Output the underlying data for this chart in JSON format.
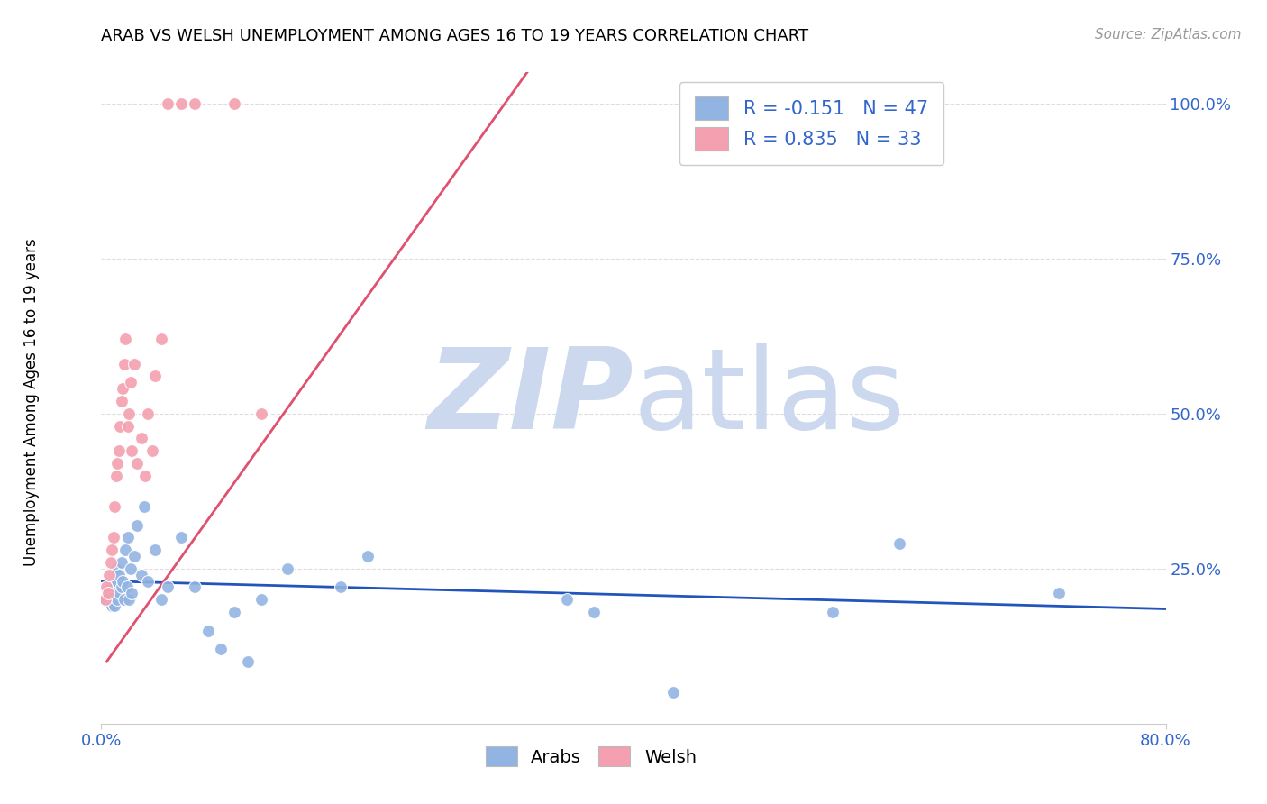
{
  "title": "ARAB VS WELSH UNEMPLOYMENT AMONG AGES 16 TO 19 YEARS CORRELATION CHART",
  "source": "Source: ZipAtlas.com",
  "ylabel": "Unemployment Among Ages 16 to 19 years",
  "xlim": [
    0.0,
    0.8
  ],
  "ylim": [
    0.0,
    1.05
  ],
  "y_ticks": [
    0.0,
    0.25,
    0.5,
    0.75,
    1.0
  ],
  "y_tick_labels": [
    "",
    "25.0%",
    "50.0%",
    "75.0%",
    "100.0%"
  ],
  "arab_color": "#92b4e3",
  "welsh_color": "#f4a0b0",
  "arab_line_color": "#2255bb",
  "welsh_line_color": "#e05070",
  "arab_R": -0.151,
  "arab_N": 47,
  "welsh_R": 0.835,
  "welsh_N": 33,
  "legend_color": "#3366cc",
  "watermark_zip": "ZIP",
  "watermark_atlas": "atlas",
  "watermark_color": "#ccd8ee",
  "arab_x": [
    0.003,
    0.005,
    0.007,
    0.008,
    0.008,
    0.009,
    0.01,
    0.01,
    0.011,
    0.012,
    0.012,
    0.013,
    0.014,
    0.015,
    0.015,
    0.016,
    0.017,
    0.018,
    0.019,
    0.02,
    0.021,
    0.022,
    0.023,
    0.025,
    0.027,
    0.03,
    0.032,
    0.035,
    0.04,
    0.045,
    0.05,
    0.06,
    0.07,
    0.08,
    0.09,
    0.1,
    0.11,
    0.12,
    0.14,
    0.18,
    0.2,
    0.35,
    0.37,
    0.43,
    0.55,
    0.6,
    0.72
  ],
  "arab_y": [
    0.2,
    0.21,
    0.2,
    0.22,
    0.19,
    0.21,
    0.22,
    0.19,
    0.25,
    0.23,
    0.2,
    0.24,
    0.21,
    0.26,
    0.22,
    0.23,
    0.2,
    0.28,
    0.22,
    0.3,
    0.2,
    0.25,
    0.21,
    0.27,
    0.32,
    0.24,
    0.35,
    0.23,
    0.28,
    0.2,
    0.22,
    0.3,
    0.22,
    0.15,
    0.12,
    0.18,
    0.1,
    0.2,
    0.25,
    0.22,
    0.27,
    0.2,
    0.18,
    0.05,
    0.18,
    0.29,
    0.21
  ],
  "welsh_x": [
    0.003,
    0.004,
    0.005,
    0.006,
    0.007,
    0.008,
    0.009,
    0.01,
    0.011,
    0.012,
    0.013,
    0.014,
    0.015,
    0.016,
    0.017,
    0.018,
    0.02,
    0.021,
    0.022,
    0.023,
    0.025,
    0.027,
    0.03,
    0.033,
    0.035,
    0.038,
    0.04,
    0.045,
    0.05,
    0.06,
    0.07,
    0.1,
    0.12
  ],
  "welsh_y": [
    0.2,
    0.22,
    0.21,
    0.24,
    0.26,
    0.28,
    0.3,
    0.35,
    0.4,
    0.42,
    0.44,
    0.48,
    0.52,
    0.54,
    0.58,
    0.62,
    0.48,
    0.5,
    0.55,
    0.44,
    0.58,
    0.42,
    0.46,
    0.4,
    0.5,
    0.44,
    0.56,
    0.62,
    1.0,
    1.0,
    1.0,
    1.0,
    0.5
  ],
  "arab_trend_x": [
    0.0,
    0.8
  ],
  "arab_trend_y": [
    0.23,
    0.185
  ],
  "welsh_trend_x": [
    0.004,
    0.32
  ],
  "welsh_trend_y": [
    0.1,
    1.05
  ],
  "background_color": "#ffffff",
  "grid_color": "#dddddd"
}
